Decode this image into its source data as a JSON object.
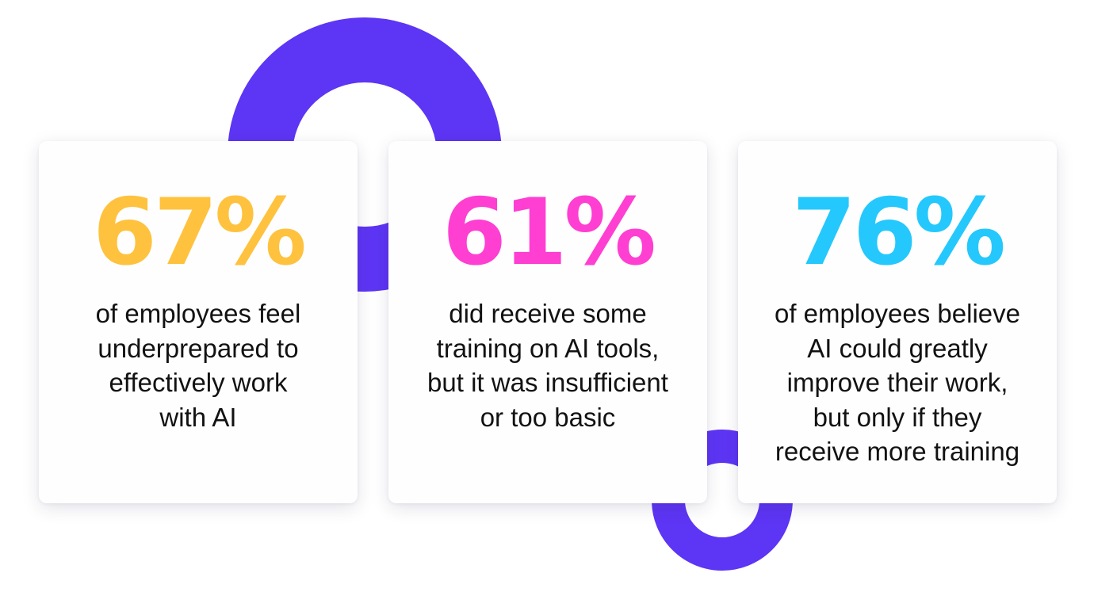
{
  "colors": {
    "ring": "#5d35f4",
    "stat_1": "#ffc23e",
    "stat_2": "#ff3ed2",
    "stat_3": "#24c8fc",
    "text": "#121212"
  },
  "cards": [
    {
      "stat": "67%",
      "lines": [
        "of employees feel",
        "underprepared to",
        "effectively work",
        "with AI"
      ]
    },
    {
      "stat": "61%",
      "lines": [
        "did receive some",
        "training on AI tools,",
        "but it was insufficient",
        "or too basic"
      ]
    },
    {
      "stat": "76%",
      "lines": [
        "of employees believe",
        "AI could greatly",
        "improve their work,",
        "but only if they",
        "receive more training"
      ]
    }
  ]
}
